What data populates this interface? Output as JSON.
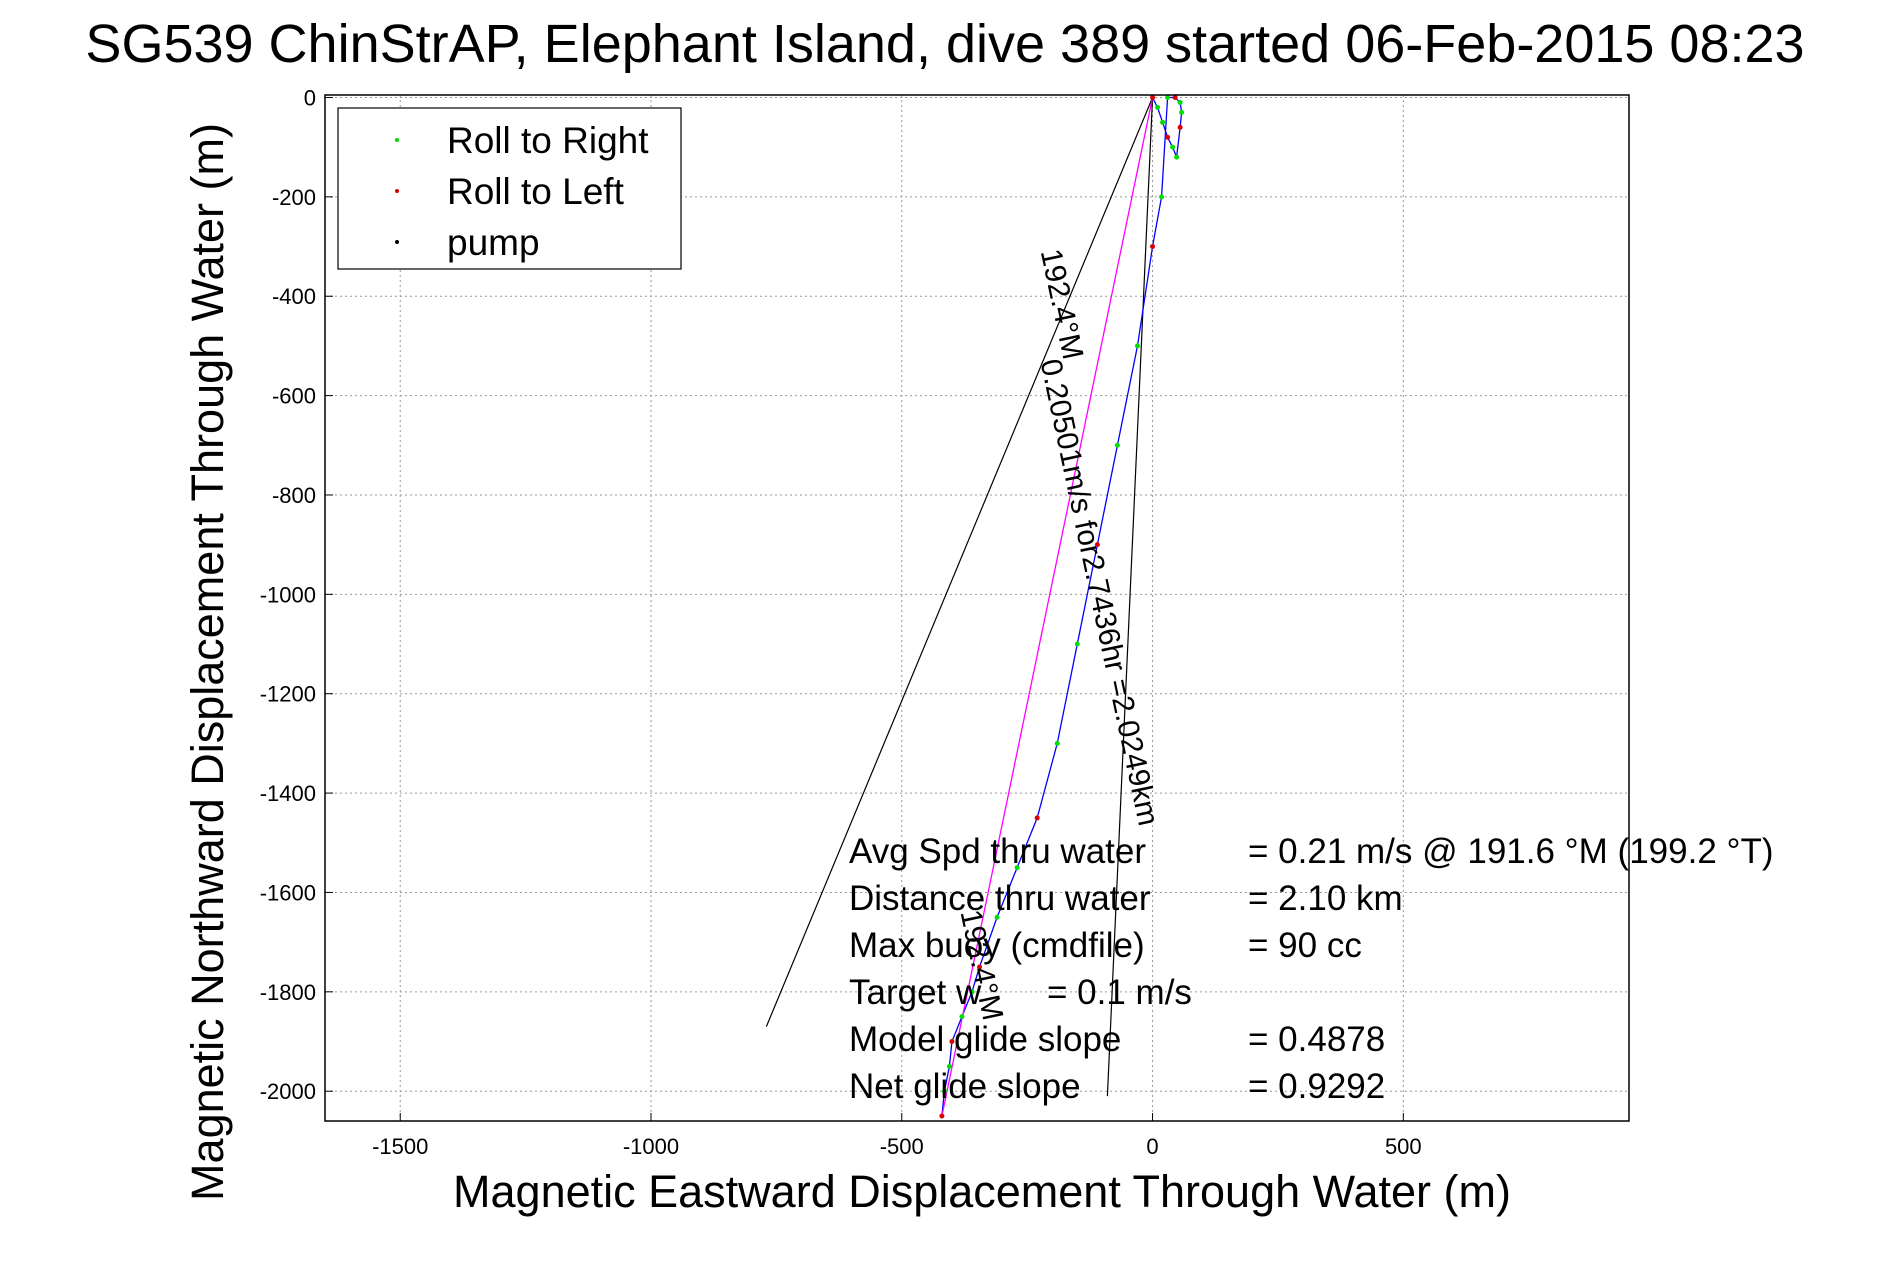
{
  "chart_data": {
    "type": "line",
    "title": "SG539 ChinStrAP, Elephant Island, dive 389 started 06-Feb-2015 08:23",
    "xlabel": "Magnetic Eastward Displacement Through Water (m)",
    "ylabel": "Magnetic Northward Displacement Through Water (m)",
    "xlim": [
      -1650,
      950
    ],
    "ylim": [
      -2060,
      5
    ],
    "xticks": [
      -1500,
      -1000,
      -500,
      0,
      500
    ],
    "yticks": [
      0,
      -200,
      -400,
      -600,
      -800,
      -1000,
      -1200,
      -1400,
      -1600,
      -1800,
      -2000
    ],
    "grid": true,
    "legend_position": "top-left",
    "legend": [
      {
        "label": "Roll to Right",
        "color": "#00dd00"
      },
      {
        "label": "Roll to Left",
        "color": "#dd0000"
      },
      {
        "label": "pump",
        "color": "#000000"
      }
    ],
    "series": [
      {
        "color": "#0000ff",
        "x": [
          0,
          10,
          20,
          30,
          40,
          48,
          55,
          58,
          55,
          45,
          30,
          18,
          0,
          -30,
          -70,
          -110,
          -150,
          -190,
          -230,
          -270,
          -310,
          -345,
          -360,
          -380,
          -400,
          -405,
          -415,
          -420
        ],
        "y": [
          0,
          -20,
          -50,
          -80,
          -100,
          -120,
          -60,
          -30,
          -10,
          0,
          0,
          -200,
          -300,
          -500,
          -700,
          -900,
          -1100,
          -1300,
          -1450,
          -1550,
          -1650,
          -1750,
          -1800,
          -1850,
          -1900,
          -1950,
          -2000,
          -2050
        ]
      },
      {
        "color": "#ff00ff",
        "x": [
          0,
          -420
        ],
        "y": [
          0,
          -2050
        ]
      }
    ],
    "annotations": [
      {
        "text": "0.20501m/s for2.7436hr =2.0249km",
        "x": -125,
        "y": -1000,
        "rotation_deg": 78
      },
      {
        "text": "192.4°M",
        "x": -200,
        "y": -420,
        "rotation_deg": 78
      },
      {
        "text": "192.4°M",
        "x": -360,
        "y": -1750,
        "rotation_deg": 78
      }
    ],
    "heading_lines": [
      {
        "x": [
          0,
          -770
        ],
        "y": [
          0,
          -1870
        ]
      },
      {
        "x": [
          0,
          -90
        ],
        "y": [
          0,
          -2010
        ]
      }
    ],
    "stats": [
      {
        "label": "Avg Spd thru water",
        "value": "=  0.21 m/s @ 191.6 °M (199.2 °T)"
      },
      {
        "label": "Distance thru water",
        "value": "=  2.10 km"
      },
      {
        "label": "Max buoy (cmdfile)",
        "value": "= 90 cc"
      },
      {
        "label": "Target w",
        "value": "= 0.1 m/s"
      },
      {
        "label": "Model glide slope",
        "value": "= 0.4878"
      },
      {
        "label": "Net glide slope",
        "value": "= 0.9292"
      }
    ]
  }
}
